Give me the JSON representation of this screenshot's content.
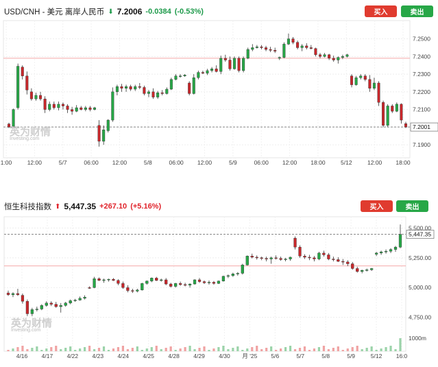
{
  "chart_data": [
    {
      "type": "candlestick",
      "title": "USD/CNH - 美元 离岸人民币",
      "last_price": "7.2006",
      "change": "-0.0384",
      "change_pct": "(-0.53%)",
      "direction": "down",
      "buy_label": "买入",
      "sell_label": "卖出",
      "price_tag": "7.2001",
      "ylim": [
        7.185,
        7.258
      ],
      "y_ticks": [
        7.19,
        7.2,
        7.21,
        7.22,
        7.23,
        7.24,
        7.25
      ],
      "y_tick_labels": [
        "7.1900",
        "7.2000",
        "7.2100",
        "7.2200",
        "7.2300",
        "7.2400",
        "7.2500"
      ],
      "x_tick_labels": [
        "1:00",
        "12:00",
        "5/7",
        "06:00",
        "12:00",
        "5/8",
        "06:00",
        "12:00",
        "5/9",
        "06:00",
        "12:00",
        "18:00",
        "5/12",
        "12:00",
        "18:00"
      ],
      "reference_level": 7.239,
      "current_level": 7.2001,
      "watermark": "英为财情",
      "watermark_sub": "Investing.com",
      "gridlines": true,
      "candles": [
        [
          7.2018,
          7.2025,
          7.1995,
          7.2001
        ],
        [
          7.2005,
          7.2105,
          7.2,
          7.21
        ],
        [
          7.211,
          7.236,
          7.21,
          7.2345
        ],
        [
          7.234,
          7.235,
          7.227,
          7.229
        ],
        [
          7.229,
          7.2315,
          7.2185,
          7.221
        ],
        [
          7.22,
          7.222,
          7.215,
          7.216
        ],
        [
          7.216,
          7.2195,
          7.215,
          7.218
        ],
        [
          7.218,
          7.22,
          7.215,
          7.216
        ],
        [
          7.216,
          7.2175,
          7.208,
          7.21
        ],
        [
          7.21,
          7.2145,
          7.209,
          7.213
        ],
        [
          7.213,
          7.2145,
          7.21,
          7.211
        ],
        [
          7.211,
          7.2145,
          7.2095,
          7.213
        ],
        [
          7.213,
          7.214,
          7.21,
          7.212
        ],
        [
          7.212,
          7.213,
          7.208,
          7.21
        ],
        [
          7.21,
          7.2115,
          7.207,
          7.209
        ],
        [
          7.209,
          7.2125,
          7.2085,
          7.211
        ],
        [
          7.211,
          7.212,
          7.2095,
          7.21
        ],
        [
          7.21,
          7.212,
          7.209,
          7.211
        ],
        [
          7.211,
          7.212,
          7.209,
          7.21
        ],
        [
          7.21,
          7.2115,
          7.2095,
          7.211
        ],
        [
          7.201,
          7.204,
          7.189,
          7.192
        ],
        [
          7.192,
          7.201,
          7.19,
          7.1985
        ],
        [
          7.198,
          7.2045,
          7.197,
          7.204
        ],
        [
          7.204,
          7.2225,
          7.203,
          7.22
        ],
        [
          7.22,
          7.224,
          7.218,
          7.223
        ],
        [
          7.223,
          7.2245,
          7.22,
          7.222
        ],
        [
          7.222,
          7.224,
          7.22,
          7.223
        ],
        [
          7.223,
          7.224,
          7.2205,
          7.2215
        ],
        [
          7.2215,
          7.224,
          7.2205,
          7.223
        ],
        [
          7.223,
          7.225,
          7.2215,
          7.2225
        ],
        [
          7.2225,
          7.2235,
          7.218,
          7.219
        ],
        [
          7.219,
          7.221,
          7.217,
          7.22
        ],
        [
          7.22,
          7.222,
          7.216,
          7.217
        ],
        [
          7.217,
          7.2205,
          7.216,
          7.2195
        ],
        [
          7.2195,
          7.221,
          7.218,
          7.219
        ],
        [
          7.219,
          7.2225,
          7.2185,
          7.2215
        ],
        [
          7.2215,
          7.228,
          7.221,
          7.227
        ],
        [
          7.227,
          7.23,
          7.2265,
          7.229
        ],
        [
          7.229,
          7.23,
          7.228,
          7.229
        ],
        [
          7.229,
          7.23,
          7.2285,
          7.2295
        ],
        [
          7.225,
          7.226,
          7.218,
          7.219
        ],
        [
          7.219,
          7.23,
          7.2185,
          7.228
        ],
        [
          7.228,
          7.232,
          7.227,
          7.231
        ],
        [
          7.231,
          7.232,
          7.23,
          7.2305
        ],
        [
          7.2305,
          7.233,
          7.2295,
          7.232
        ],
        [
          7.232,
          7.234,
          7.231,
          7.233
        ],
        [
          7.233,
          7.235,
          7.231,
          7.2315
        ],
        [
          7.2315,
          7.2405,
          7.23,
          7.239
        ],
        [
          7.239,
          7.241,
          7.237,
          7.238
        ],
        [
          7.238,
          7.24,
          7.232,
          7.233
        ],
        [
          7.233,
          7.24,
          7.2325,
          7.239
        ],
        [
          7.239,
          7.24,
          7.231,
          7.232
        ],
        [
          7.232,
          7.24,
          7.231,
          7.239
        ],
        [
          7.239,
          7.245,
          7.2385,
          7.244
        ],
        [
          7.244,
          7.247,
          7.243,
          7.245
        ],
        [
          7.245,
          7.2465,
          7.2445,
          7.2455
        ],
        [
          7.2455,
          7.2465,
          7.244,
          7.245
        ],
        [
          7.245,
          7.246,
          7.243,
          7.244
        ],
        [
          7.244,
          7.2455,
          7.2425,
          7.2435
        ],
        [
          7.2435,
          7.245,
          7.242,
          7.243
        ],
        [
          7.239,
          7.24,
          7.238,
          7.2395
        ],
        [
          7.2395,
          7.248,
          7.239,
          7.247
        ],
        [
          7.247,
          7.253,
          7.2465,
          7.25
        ],
        [
          7.25,
          7.251,
          7.247,
          7.248
        ],
        [
          7.248,
          7.249,
          7.244,
          7.245
        ],
        [
          7.245,
          7.247,
          7.243,
          7.246
        ],
        [
          7.246,
          7.2475,
          7.244,
          7.245
        ],
        [
          7.245,
          7.2465,
          7.244,
          7.2445
        ],
        [
          7.2445,
          7.245,
          7.24,
          7.241
        ],
        [
          7.241,
          7.242,
          7.239,
          7.24
        ],
        [
          7.24,
          7.242,
          7.2395,
          7.241
        ],
        [
          7.241,
          7.2415,
          7.238,
          7.239
        ],
        [
          7.239,
          7.2405,
          7.237,
          7.238
        ],
        [
          7.238,
          7.24,
          7.236,
          7.2395
        ],
        [
          7.2395,
          7.241,
          7.2385,
          7.24
        ],
        [
          7.24,
          7.2415,
          7.2395,
          7.241
        ],
        [
          7.229,
          7.23,
          7.2225,
          7.224
        ],
        [
          7.224,
          7.229,
          7.2235,
          7.228
        ],
        [
          7.228,
          7.23,
          7.227,
          7.229
        ],
        [
          7.229,
          7.23,
          7.226,
          7.227
        ],
        [
          7.227,
          7.2295,
          7.22,
          7.222
        ],
        [
          7.222,
          7.228,
          7.221,
          7.225
        ],
        [
          7.225,
          7.226,
          7.212,
          7.214
        ],
        [
          7.214,
          7.215,
          7.2,
          7.201
        ],
        [
          7.201,
          7.213,
          7.2,
          7.212
        ],
        [
          7.212,
          7.213,
          7.208,
          7.209
        ],
        [
          7.209,
          7.214,
          7.2085,
          7.213
        ],
        [
          7.213,
          7.2135,
          7.202,
          7.204
        ],
        [
          7.202,
          7.203,
          7.1995,
          7.2001
        ]
      ]
    },
    {
      "type": "candlestick",
      "title": "恒生科技指数",
      "last_price": "5,447.35",
      "change": "+267.10",
      "change_pct": "(+5.16%)",
      "direction": "up",
      "buy_label": "买入",
      "sell_label": "卖出",
      "price_tag": "5,447.35",
      "ylim": [
        4650,
        5560
      ],
      "y_ticks": [
        4750,
        5000,
        5250,
        5500
      ],
      "y_tick_labels": [
        "4,750.00",
        "5,000.00",
        "5,250.00",
        "5,500.00"
      ],
      "x_tick_labels": [
        "4/16",
        "4/17",
        "4/22",
        "4/23",
        "4/24",
        "4/25",
        "4/28",
        "4/29",
        "4/30",
        "月 '25",
        "5/6",
        "5/7",
        "5/8",
        "5/9",
        "5/12",
        "16:0"
      ],
      "reference_level": 5182,
      "current_level": 5447.35,
      "volume_label": "1000m",
      "watermark": "英为财情",
      "watermark_sub": "Investing.com",
      "gridlines": true,
      "candles": [
        [
          4955,
          4975,
          4930,
          4940
        ],
        [
          4940,
          4960,
          4920,
          4950
        ],
        [
          4950,
          4990,
          4930,
          4940
        ],
        [
          4935,
          4950,
          4865,
          4885
        ],
        [
          4885,
          4900,
          4760,
          4780
        ],
        [
          4780,
          4830,
          4760,
          4815
        ],
        [
          4815,
          4840,
          4800,
          4820
        ],
        [
          4820,
          4860,
          4810,
          4850
        ],
        [
          4850,
          4885,
          4840,
          4870
        ],
        [
          4870,
          4885,
          4845,
          4860
        ],
        [
          4860,
          4880,
          4830,
          4840
        ],
        [
          4840,
          4870,
          4790,
          4850
        ],
        [
          4850,
          4880,
          4840,
          4870
        ],
        [
          4870,
          4900,
          4860,
          4890
        ],
        [
          4890,
          4905,
          4880,
          4895
        ],
        [
          4895,
          4925,
          4890,
          4910
        ],
        [
          4910,
          4935,
          4900,
          4920
        ],
        [
          5000,
          5010,
          4990,
          4995
        ],
        [
          5000,
          5090,
          4995,
          5075
        ],
        [
          5075,
          5085,
          5055,
          5060
        ],
        [
          5060,
          5075,
          5040,
          5065
        ],
        [
          5065,
          5075,
          5050,
          5070
        ],
        [
          5070,
          5080,
          5055,
          5060
        ],
        [
          5060,
          5070,
          5020,
          5035
        ],
        [
          5035,
          5050,
          4990,
          5000
        ],
        [
          5000,
          5020,
          4960,
          4975
        ],
        [
          4975,
          4990,
          4955,
          4970
        ],
        [
          4970,
          4990,
          4960,
          4980
        ],
        [
          4980,
          5040,
          4975,
          5035
        ],
        [
          5035,
          5060,
          5025,
          5055
        ],
        [
          5055,
          5085,
          5045,
          5080
        ],
        [
          5080,
          5090,
          5055,
          5060
        ],
        [
          5060,
          5075,
          5050,
          5065
        ],
        [
          5065,
          5080,
          5020,
          5030
        ],
        [
          5030,
          5040,
          5000,
          5010
        ],
        [
          5010,
          5040,
          5000,
          5035
        ],
        [
          5035,
          5050,
          5015,
          5025
        ],
        [
          5025,
          5040,
          5010,
          5020
        ],
        [
          5020,
          5035,
          5000,
          5030
        ],
        [
          5030,
          5070,
          5025,
          5065
        ],
        [
          5065,
          5080,
          5040,
          5050
        ],
        [
          5050,
          5060,
          5030,
          5040
        ],
        [
          5040,
          5060,
          5025,
          5045
        ],
        [
          5045,
          5055,
          5025,
          5035
        ],
        [
          5035,
          5060,
          5030,
          5055
        ],
        [
          5055,
          5100,
          5050,
          5095
        ],
        [
          5095,
          5110,
          5080,
          5100
        ],
        [
          5100,
          5125,
          5090,
          5115
        ],
        [
          5115,
          5130,
          5100,
          5120
        ],
        [
          5120,
          5200,
          5110,
          5190
        ],
        [
          5190,
          5270,
          5185,
          5265
        ],
        [
          5265,
          5285,
          5245,
          5255
        ],
        [
          5255,
          5270,
          5235,
          5250
        ],
        [
          5250,
          5260,
          5230,
          5245
        ],
        [
          5245,
          5260,
          5220,
          5240
        ],
        [
          5240,
          5260,
          5200,
          5250
        ],
        [
          5250,
          5270,
          5235,
          5245
        ],
        [
          5245,
          5260,
          5225,
          5235
        ],
        [
          5235,
          5250,
          5220,
          5240
        ],
        [
          5240,
          5260,
          5225,
          5255
        ],
        [
          5415,
          5430,
          5320,
          5340
        ],
        [
          5340,
          5355,
          5250,
          5265
        ],
        [
          5265,
          5280,
          5240,
          5255
        ],
        [
          5255,
          5275,
          5230,
          5250
        ],
        [
          5250,
          5265,
          5220,
          5240
        ],
        [
          5240,
          5300,
          5230,
          5290
        ],
        [
          5290,
          5310,
          5260,
          5275
        ],
        [
          5275,
          5290,
          5230,
          5240
        ],
        [
          5240,
          5260,
          5220,
          5235
        ],
        [
          5235,
          5255,
          5215,
          5220
        ],
        [
          5220,
          5240,
          5190,
          5215
        ],
        [
          5215,
          5230,
          5180,
          5200
        ],
        [
          5200,
          5215,
          5150,
          5160
        ],
        [
          5160,
          5175,
          5125,
          5135
        ],
        [
          5135,
          5150,
          5120,
          5145
        ],
        [
          5145,
          5160,
          5135,
          5150
        ],
        [
          5150,
          5165,
          5140,
          5160
        ],
        [
          5280,
          5300,
          5265,
          5290
        ],
        [
          5290,
          5310,
          5275,
          5300
        ],
        [
          5300,
          5320,
          5285,
          5305
        ],
        [
          5305,
          5330,
          5290,
          5320
        ],
        [
          5320,
          5350,
          5300,
          5340
        ],
        [
          5340,
          5530,
          5330,
          5447
        ]
      ]
    }
  ]
}
